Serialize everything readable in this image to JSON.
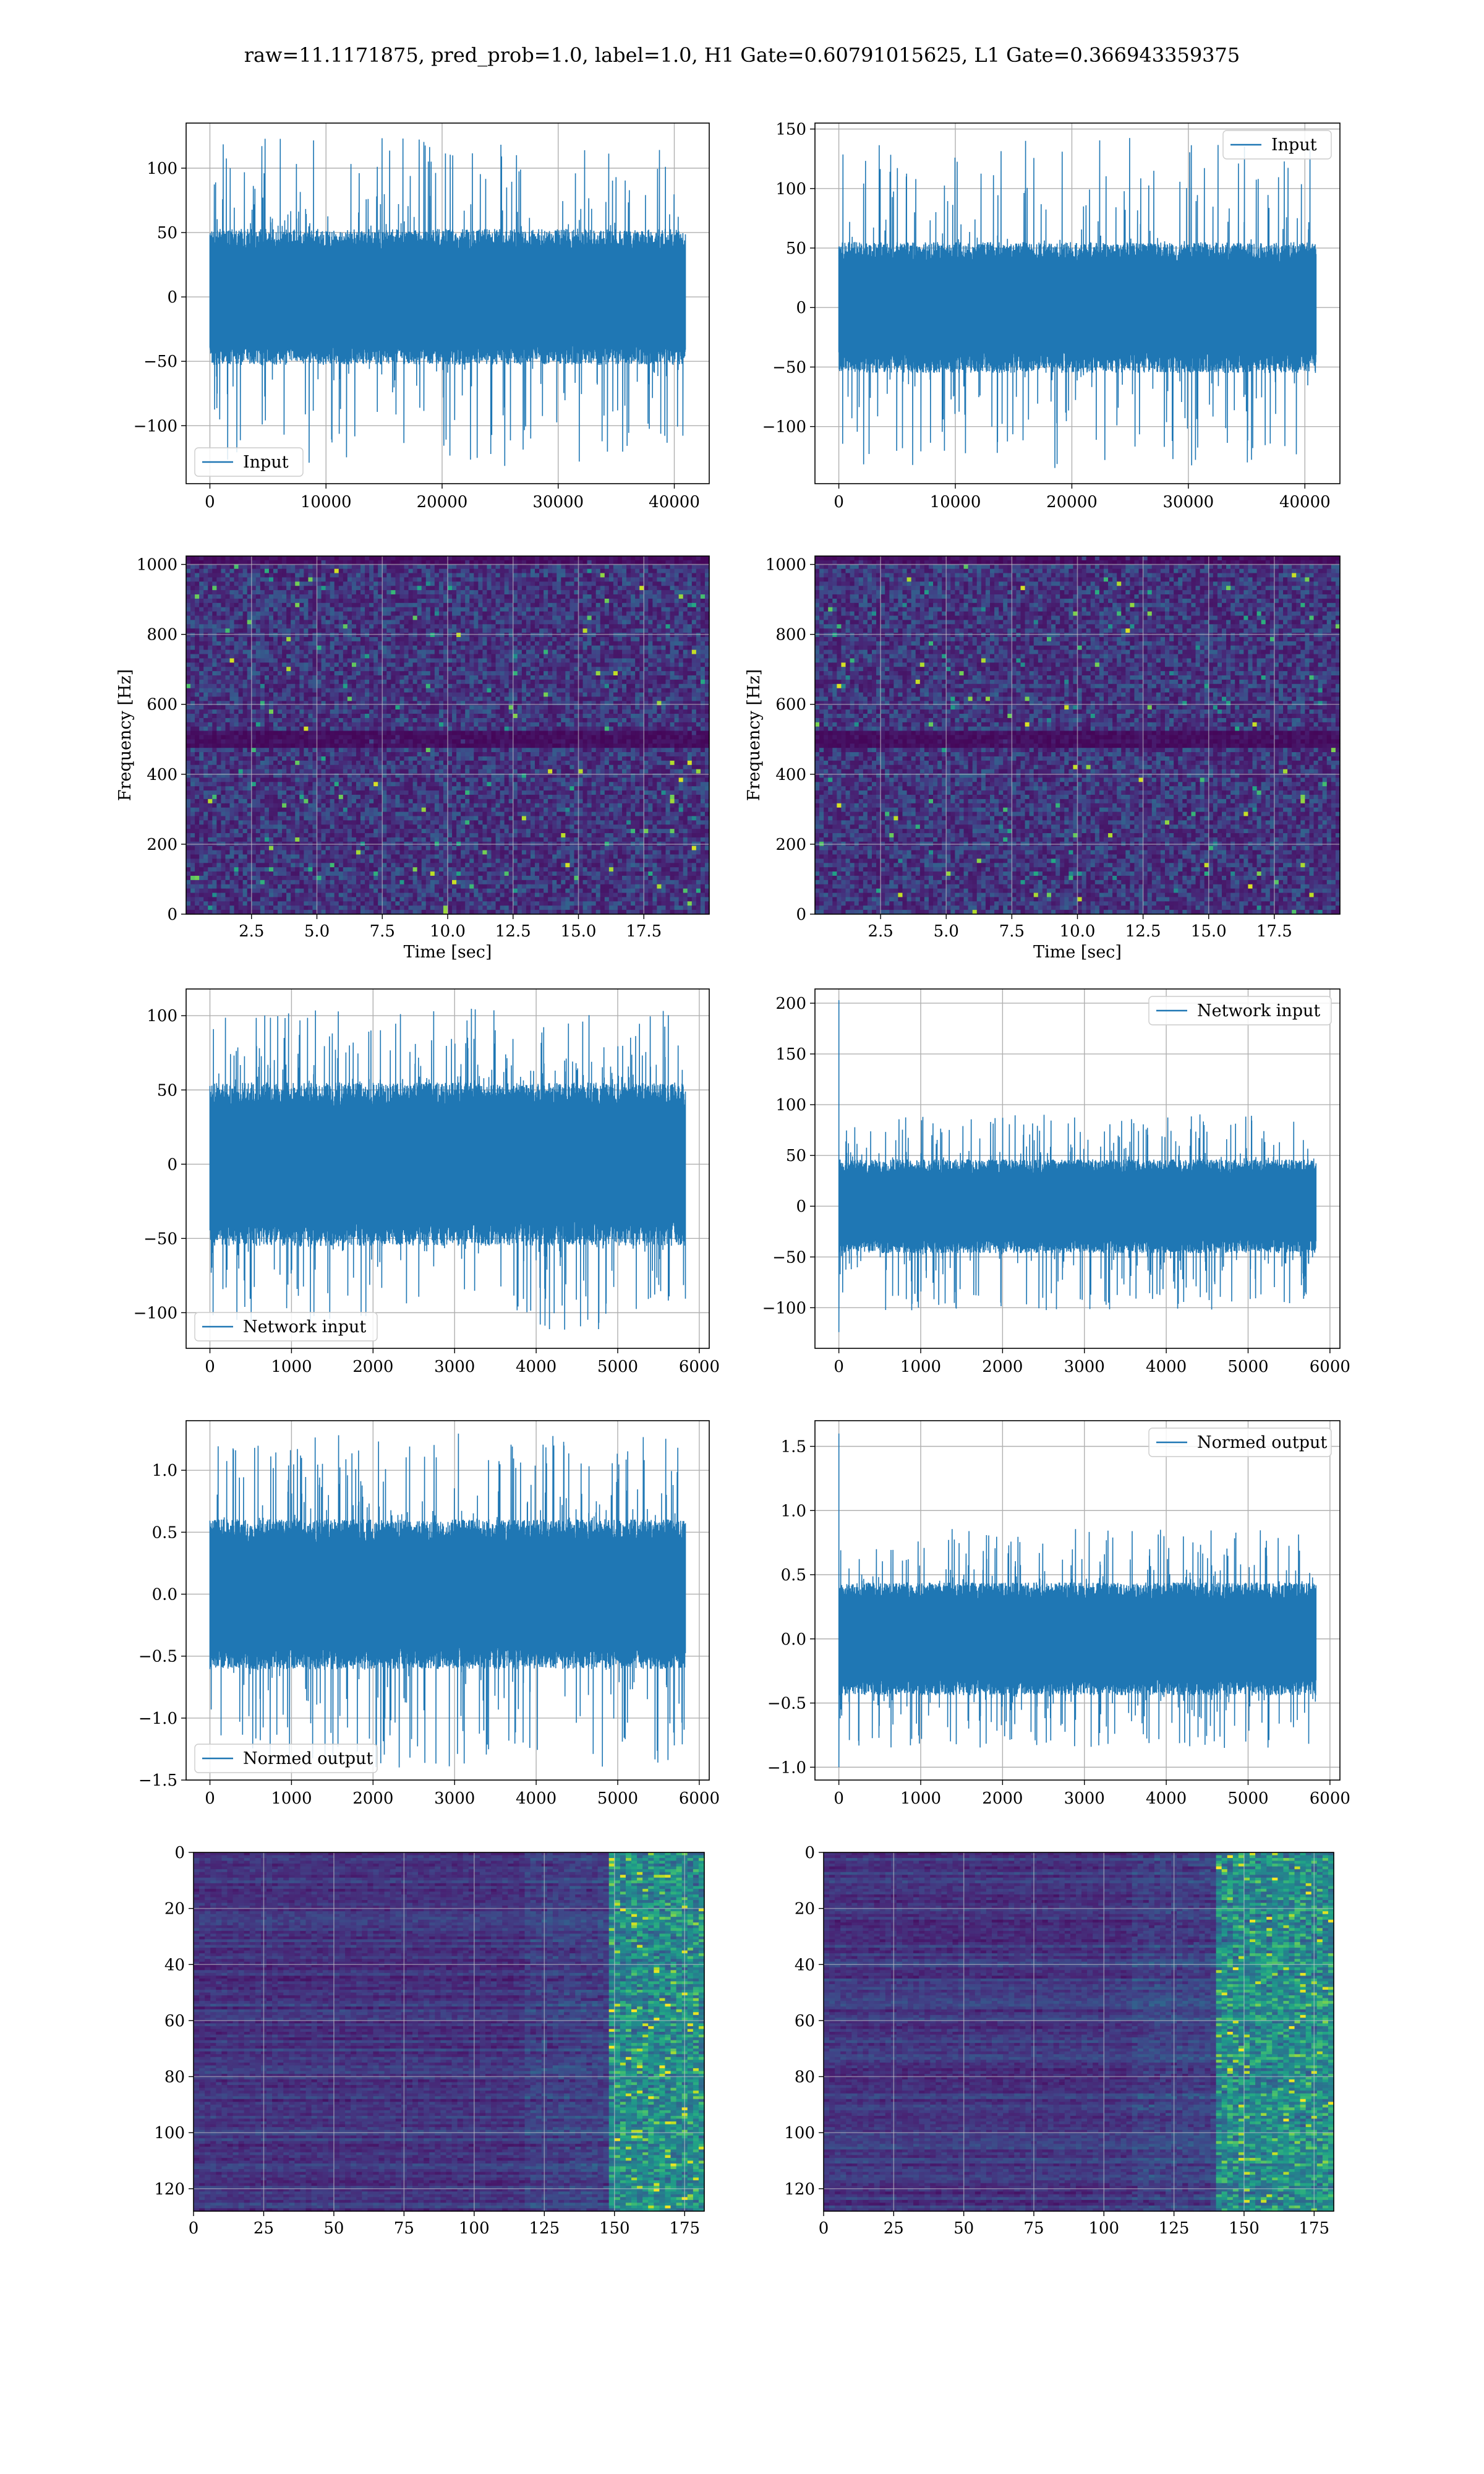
{
  "figure": {
    "suptitle": "raw=11.1171875, pred_prob=1.0, label=1.0, H1 Gate=0.60791015625, L1 Gate=0.366943359375"
  },
  "colors": {
    "signal": "#1f77b4",
    "grid": "#b0b0b0",
    "colormap": "viridis"
  },
  "chart_data": [
    {
      "id": "p1",
      "type": "line",
      "legend": "Input",
      "legend_loc": "lower-left",
      "x_range": [
        0,
        40960
      ],
      "xlim": [
        -2048,
        43008
      ],
      "xticks": [
        0,
        10000,
        20000,
        30000,
        40000
      ],
      "ylim": [
        -145,
        135
      ],
      "yticks": [
        -100,
        -50,
        0,
        50,
        100
      ],
      "envelope": {
        "core": 48,
        "spike_max": 124,
        "spike_min": -133,
        "spike_rate": 0.08
      }
    },
    {
      "id": "p2",
      "type": "line",
      "legend": "Input",
      "legend_loc": "upper-right",
      "x_range": [
        0,
        40960
      ],
      "xlim": [
        -2048,
        43008
      ],
      "xticks": [
        0,
        10000,
        20000,
        30000,
        40000
      ],
      "ylim": [
        -148,
        155
      ],
      "yticks": [
        -100,
        -50,
        0,
        50,
        100,
        150
      ],
      "envelope": {
        "core": 50,
        "spike_max": 143,
        "spike_min": -135,
        "spike_rate": 0.08
      }
    },
    {
      "id": "p3",
      "type": "heatmap",
      "colormap": "viridis",
      "xlabel": "Time [sec]",
      "ylabel": "Frequency [Hz]",
      "xlim": [
        0,
        20
      ],
      "xticks": [
        2.5,
        5.0,
        7.5,
        10.0,
        12.5,
        15.0,
        17.5
      ],
      "ylim": [
        0,
        1024
      ],
      "yticks": [
        0,
        200,
        400,
        600,
        800,
        1000
      ],
      "dark_bands": [
        {
          "y": 1012,
          "w": 14
        },
        {
          "y": 500,
          "w": 20
        }
      ]
    },
    {
      "id": "p4",
      "type": "heatmap",
      "colormap": "viridis",
      "xlabel": "Time [sec]",
      "ylabel": "Frequency [Hz]",
      "xlim": [
        0,
        20
      ],
      "xticks": [
        2.5,
        5.0,
        7.5,
        10.0,
        12.5,
        15.0,
        17.5
      ],
      "ylim": [
        0,
        1024
      ],
      "yticks": [
        0,
        200,
        400,
        600,
        800,
        1000
      ],
      "dark_bands": [
        {
          "y": 1012,
          "w": 14
        },
        {
          "y": 500,
          "w": 20
        }
      ]
    },
    {
      "id": "p5",
      "type": "line",
      "legend": "Network input",
      "legend_loc": "lower-left",
      "x_range": [
        0,
        5830
      ],
      "xlim": [
        -292,
        6122
      ],
      "xticks": [
        0,
        1000,
        2000,
        3000,
        4000,
        5000,
        6000
      ],
      "ylim": [
        -124,
        118
      ],
      "yticks": [
        -100,
        -50,
        0,
        50,
        100
      ],
      "envelope": {
        "core": 50,
        "spike_max": 105,
        "spike_min": -112,
        "spike_rate": 0.1
      }
    },
    {
      "id": "p6",
      "type": "line",
      "legend": "Network input",
      "legend_loc": "upper-right",
      "x_range": [
        0,
        5830
      ],
      "xlim": [
        -292,
        6122
      ],
      "xticks": [
        0,
        1000,
        2000,
        3000,
        4000,
        5000,
        6000
      ],
      "ylim": [
        -140,
        214
      ],
      "yticks": [
        -100,
        -50,
        0,
        50,
        100,
        150,
        200
      ],
      "envelope": {
        "core": 42,
        "spike_max": 91,
        "spike_min": -103,
        "spike_rate": 0.1
      },
      "initial_spike": {
        "max": 203,
        "min": -124
      }
    },
    {
      "id": "p7",
      "type": "line",
      "legend": "Normed output",
      "legend_loc": "lower-left",
      "x_range": [
        0,
        5830
      ],
      "xlim": [
        -292,
        6122
      ],
      "xticks": [
        0,
        1000,
        2000,
        3000,
        4000,
        5000,
        6000
      ],
      "ylim": [
        -1.5,
        1.4
      ],
      "yticks": [
        -1.5,
        -1.0,
        -0.5,
        0.0,
        0.5,
        1.0
      ],
      "ytick_labels": [
        "−1.5",
        "−1.0",
        "−0.5",
        "0.0",
        "0.5",
        "1.0"
      ],
      "envelope": {
        "core": 0.55,
        "spike_max": 1.3,
        "spike_min": -1.4,
        "spike_rate": 0.1
      }
    },
    {
      "id": "p8",
      "type": "line",
      "legend": "Normed output",
      "legend_loc": "upper-right",
      "x_range": [
        0,
        5830
      ],
      "xlim": [
        -292,
        6122
      ],
      "xticks": [
        0,
        1000,
        2000,
        3000,
        4000,
        5000,
        6000
      ],
      "ylim": [
        -1.1,
        1.7
      ],
      "yticks": [
        -1.0,
        -0.5,
        0.0,
        0.5,
        1.0,
        1.5
      ],
      "ytick_labels": [
        "−1.0",
        "−0.5",
        "0.0",
        "0.5",
        "1.0",
        "1.5"
      ],
      "envelope": {
        "core": 0.4,
        "spike_max": 0.86,
        "spike_min": -0.85,
        "spike_rate": 0.1
      },
      "initial_spike": {
        "max": 1.6,
        "min": -1.0
      }
    },
    {
      "id": "p9",
      "type": "heatmap",
      "colormap": "viridis",
      "inverted_y": true,
      "xlim": [
        0,
        182
      ],
      "xticks": [
        0,
        25,
        50,
        75,
        100,
        125,
        150,
        175
      ],
      "ylim": [
        128,
        0
      ],
      "yticks": [
        0,
        20,
        40,
        60,
        80,
        100,
        120
      ],
      "bright_from_x": 148
    },
    {
      "id": "p10",
      "type": "heatmap",
      "colormap": "viridis",
      "inverted_y": true,
      "xlim": [
        0,
        182
      ],
      "xticks": [
        0,
        25,
        50,
        75,
        100,
        125,
        150,
        175
      ],
      "ylim": [
        128,
        0
      ],
      "yticks": [
        0,
        20,
        40,
        60,
        80,
        100,
        120
      ],
      "bright_from_x": 140
    }
  ]
}
